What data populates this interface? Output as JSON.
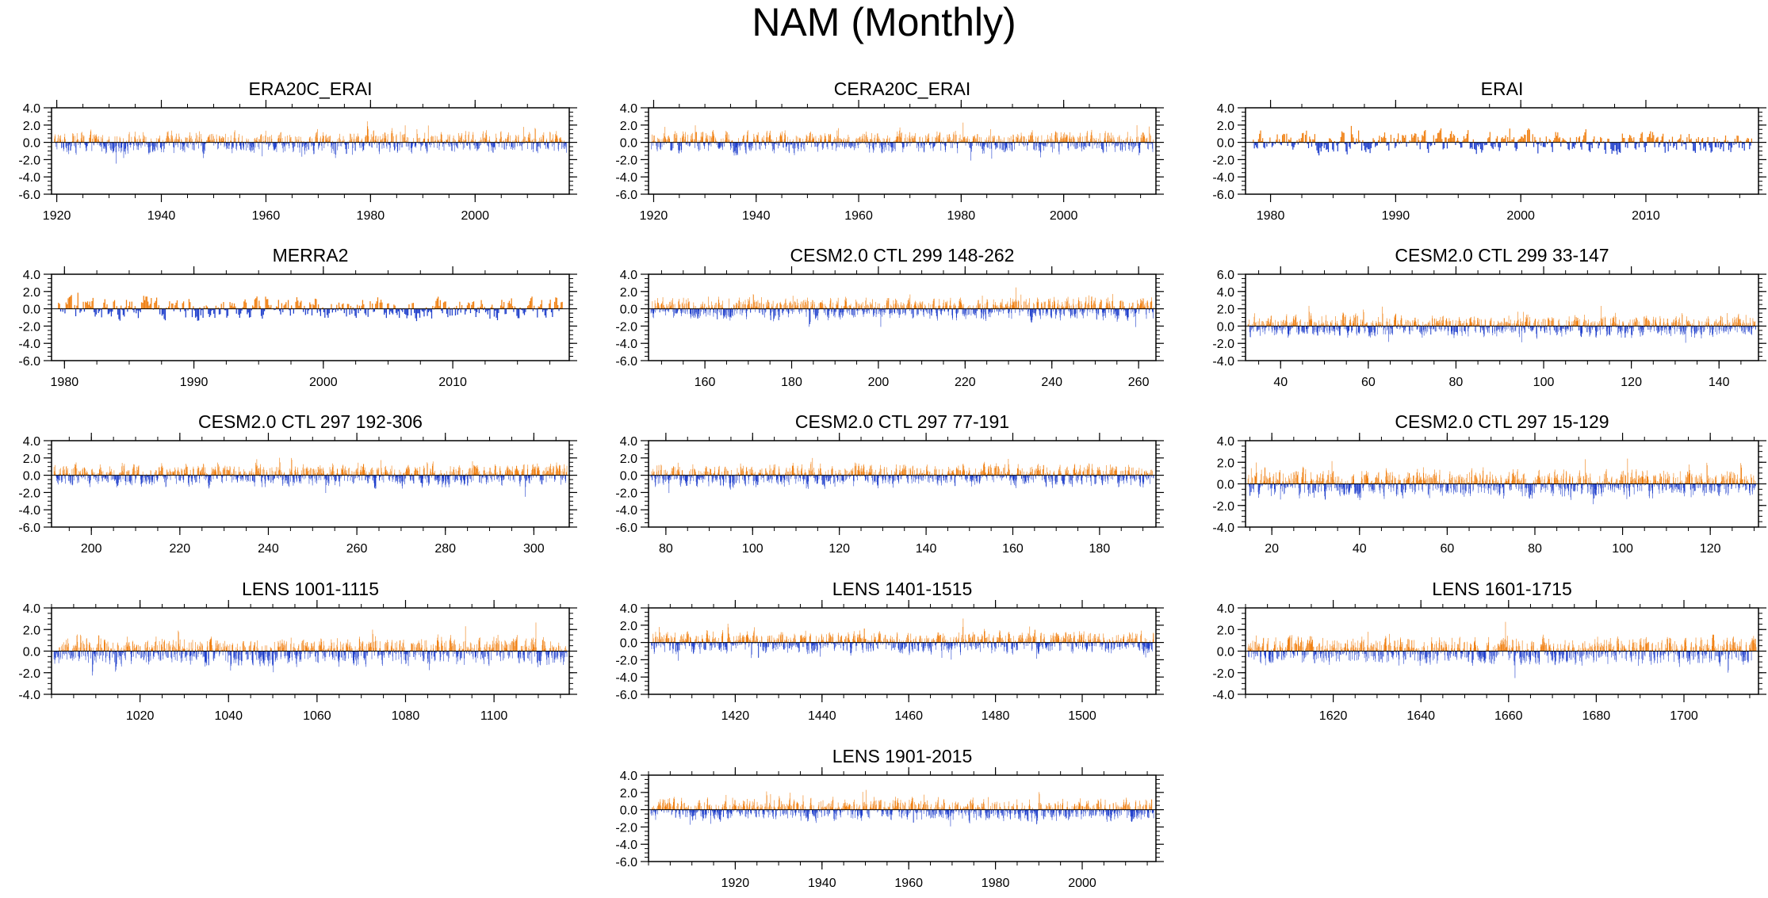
{
  "title": "NAM (Monthly)",
  "colors": {
    "positive": "#f07f10",
    "negative": "#1f3fcc",
    "axis": "#000000",
    "background": "#ffffff"
  },
  "chart_data": [
    {
      "type": "bar",
      "title": "ERA20C_ERAI",
      "xlim": [
        1919,
        2018
      ],
      "ylim": [
        -6,
        4
      ],
      "xticks": [
        1920,
        1940,
        1960,
        1980,
        2000
      ],
      "xtick_labels": [
        "1920",
        "1940",
        "1960",
        "1980",
        "2000"
      ],
      "yticks": [
        4,
        2,
        0,
        -2,
        -4,
        -6
      ],
      "ytick_labels": [
        "4.0",
        "2.0",
        "0.0",
        "-2.0",
        "-4.0",
        "-6.0"
      ],
      "series_note": "monthly NAM index, positive orange / negative blue"
    },
    {
      "type": "bar",
      "title": "CERA20C_ERAI",
      "xlim": [
        1919,
        2018
      ],
      "ylim": [
        -6,
        4
      ],
      "xticks": [
        1920,
        1940,
        1960,
        1980,
        2000
      ],
      "xtick_labels": [
        "1920",
        "1940",
        "1960",
        "1980",
        "2000"
      ],
      "yticks": [
        4,
        2,
        0,
        -2,
        -4,
        -6
      ],
      "ytick_labels": [
        "4.0",
        "2.0",
        "0.0",
        "-2.0",
        "-4.0",
        "-6.0"
      ],
      "series_note": "monthly NAM index, positive orange / negative blue"
    },
    {
      "type": "bar",
      "title": "ERAI",
      "xlim": [
        1978,
        2019
      ],
      "ylim": [
        -6,
        4
      ],
      "xticks": [
        1980,
        1990,
        2000,
        2010
      ],
      "xtick_labels": [
        "1980",
        "1990",
        "2000",
        "2010"
      ],
      "yticks": [
        4,
        2,
        0,
        -2,
        -4,
        -6
      ],
      "ytick_labels": [
        "4.0",
        "2.0",
        "0.0",
        "-2.0",
        "-4.0",
        "-6.0"
      ],
      "series_note": "monthly NAM index, positive orange / negative blue"
    },
    {
      "type": "bar",
      "title": "MERRA2",
      "xlim": [
        1979,
        2019
      ],
      "ylim": [
        -6,
        4
      ],
      "xticks": [
        1980,
        1990,
        2000,
        2010
      ],
      "xtick_labels": [
        "1980",
        "1990",
        "2000",
        "2010"
      ],
      "yticks": [
        4,
        2,
        0,
        -2,
        -4,
        -6
      ],
      "ytick_labels": [
        "4.0",
        "2.0",
        "0.0",
        "-2.0",
        "-4.0",
        "-6.0"
      ],
      "series_note": "monthly NAM index, positive orange / negative blue"
    },
    {
      "type": "bar",
      "title": "CESM2.0 CTL 299 148-262",
      "xlim": [
        147,
        264
      ],
      "ylim": [
        -6,
        4
      ],
      "xticks": [
        160,
        180,
        200,
        220,
        240,
        260
      ],
      "xtick_labels": [
        "160",
        "180",
        "200",
        "220",
        "240",
        "260"
      ],
      "yticks": [
        4,
        2,
        0,
        -2,
        -4,
        -6
      ],
      "ytick_labels": [
        "4.0",
        "2.0",
        "0.0",
        "-2.0",
        "-4.0",
        "-6.0"
      ],
      "series_note": "monthly NAM index, positive orange / negative blue"
    },
    {
      "type": "bar",
      "title": "CESM2.0 CTL 299 33-147",
      "xlim": [
        32,
        149
      ],
      "ylim": [
        -4,
        6
      ],
      "xticks": [
        40,
        60,
        80,
        100,
        120,
        140
      ],
      "xtick_labels": [
        "40",
        "60",
        "80",
        "100",
        "120",
        "140"
      ],
      "yticks": [
        6,
        4,
        2,
        0,
        -2,
        -4
      ],
      "ytick_labels": [
        "6.0",
        "4.0",
        "2.0",
        "0.0",
        "-2.0",
        "-4.0"
      ],
      "series_note": "monthly NAM index, positive orange / negative blue"
    },
    {
      "type": "bar",
      "title": "CESM2.0 CTL 297 192-306",
      "xlim": [
        191,
        308
      ],
      "ylim": [
        -6,
        4
      ],
      "xticks": [
        200,
        220,
        240,
        260,
        280,
        300
      ],
      "xtick_labels": [
        "200",
        "220",
        "240",
        "260",
        "280",
        "300"
      ],
      "yticks": [
        4,
        2,
        0,
        -2,
        -4,
        -6
      ],
      "ytick_labels": [
        "4.0",
        "2.0",
        "0.0",
        "-2.0",
        "-4.0",
        "-6.0"
      ],
      "series_note": "monthly NAM index, positive orange / negative blue"
    },
    {
      "type": "bar",
      "title": "CESM2.0 CTL 297 77-191",
      "xlim": [
        76,
        193
      ],
      "ylim": [
        -6,
        4
      ],
      "xticks": [
        80,
        100,
        120,
        140,
        160,
        180
      ],
      "xtick_labels": [
        "80",
        "100",
        "120",
        "140",
        "160",
        "180"
      ],
      "yticks": [
        4,
        2,
        0,
        -2,
        -4,
        -6
      ],
      "ytick_labels": [
        "4.0",
        "2.0",
        "0.0",
        "-2.0",
        "-4.0",
        "-6.0"
      ],
      "series_note": "monthly NAM index, positive orange / negative blue"
    },
    {
      "type": "bar",
      "title": "CESM2.0 CTL 297 15-129",
      "xlim": [
        14,
        131
      ],
      "ylim": [
        -4,
        4
      ],
      "xticks": [
        20,
        40,
        60,
        80,
        100,
        120
      ],
      "xtick_labels": [
        "20",
        "40",
        "60",
        "80",
        "100",
        "120"
      ],
      "yticks": [
        4,
        2,
        0,
        -2,
        -4
      ],
      "ytick_labels": [
        "4.0",
        "2.0",
        "0.0",
        "-2.0",
        "-4.0"
      ],
      "series_note": "monthly NAM index, positive orange / negative blue"
    },
    {
      "type": "bar",
      "title": "LENS 1001-1115",
      "xlim": [
        1000,
        1117
      ],
      "ylim": [
        -4,
        4
      ],
      "xticks": [
        1020,
        1040,
        1060,
        1080,
        1100
      ],
      "xtick_labels": [
        "1020",
        "1040",
        "1060",
        "1080",
        "1100"
      ],
      "yticks": [
        4,
        2,
        0,
        -2,
        -4
      ],
      "ytick_labels": [
        "4.0",
        "2.0",
        "0.0",
        "-2.0",
        "-4.0"
      ],
      "series_note": "monthly NAM index, positive orange / negative blue"
    },
    {
      "type": "bar",
      "title": "LENS 1401-1515",
      "xlim": [
        1400,
        1517
      ],
      "ylim": [
        -6,
        4
      ],
      "xticks": [
        1420,
        1440,
        1460,
        1480,
        1500
      ],
      "xtick_labels": [
        "1420",
        "1440",
        "1460",
        "1480",
        "1500"
      ],
      "yticks": [
        4,
        2,
        0,
        -2,
        -4,
        -6
      ],
      "ytick_labels": [
        "4.0",
        "2.0",
        "0.0",
        "-2.0",
        "-4.0",
        "-6.0"
      ],
      "series_note": "monthly NAM index, positive orange / negative blue"
    },
    {
      "type": "bar",
      "title": "LENS 1601-1715",
      "xlim": [
        1600,
        1717
      ],
      "ylim": [
        -4,
        4
      ],
      "xticks": [
        1620,
        1640,
        1660,
        1680,
        1700
      ],
      "xtick_labels": [
        "1620",
        "1640",
        "1660",
        "1680",
        "1700"
      ],
      "yticks": [
        4,
        2,
        0,
        -2,
        -4
      ],
      "ytick_labels": [
        "4.0",
        "2.0",
        "0.0",
        "-2.0",
        "-4.0"
      ],
      "series_note": "monthly NAM index, positive orange / negative blue"
    },
    {
      "type": "bar",
      "title": "LENS 1901-2015",
      "xlim": [
        1900,
        2017
      ],
      "ylim": [
        -6,
        4
      ],
      "xticks": [
        1920,
        1940,
        1960,
        1980,
        2000
      ],
      "xtick_labels": [
        "1920",
        "1940",
        "1960",
        "1980",
        "2000"
      ],
      "yticks": [
        4,
        2,
        0,
        -2,
        -4,
        -6
      ],
      "ytick_labels": [
        "4.0",
        "2.0",
        "0.0",
        "-2.0",
        "-4.0",
        "-6.0"
      ],
      "series_note": "monthly NAM index, positive orange / negative blue"
    }
  ]
}
